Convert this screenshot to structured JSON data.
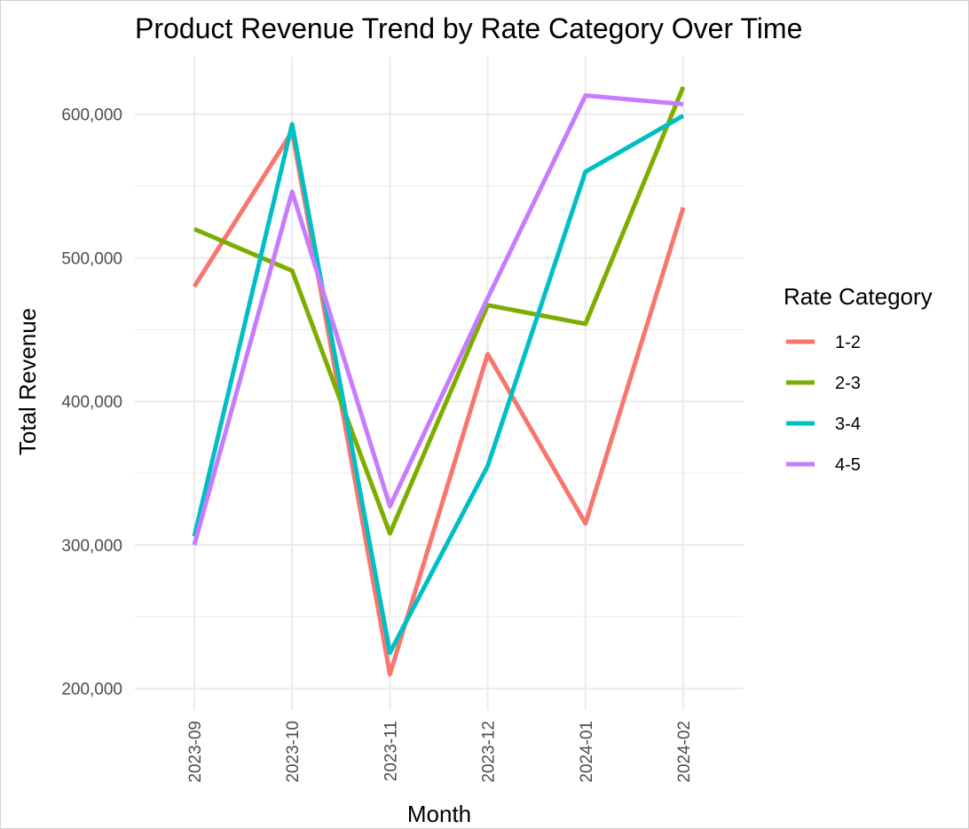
{
  "chart_data": {
    "type": "line",
    "title": "Product Revenue Trend by Rate Category Over Time",
    "xlabel": "Month",
    "ylabel": "Total Revenue",
    "categories": [
      "2023-09",
      "2023-10",
      "2023-11",
      "2023-12",
      "2024-01",
      "2024-02"
    ],
    "ylim": [
      185000,
      640000
    ],
    "yticks": [
      200000,
      300000,
      400000,
      500000,
      600000
    ],
    "ytick_labels": [
      "200,000",
      "300,000",
      "400,000",
      "500,000",
      "600,000"
    ],
    "grid": true,
    "legend": {
      "title": "Rate Category",
      "placement": "right"
    },
    "series": [
      {
        "name": "1-2",
        "color": "#F8766D",
        "values": [
          480000,
          588000,
          210000,
          433000,
          315000,
          535000
        ]
      },
      {
        "name": "2-3",
        "color": "#7CAE00",
        "values": [
          520000,
          491000,
          308000,
          467000,
          454000,
          619000
        ]
      },
      {
        "name": "3-4",
        "color": "#00BFC4",
        "values": [
          306000,
          593000,
          225000,
          355000,
          560000,
          599000
        ]
      },
      {
        "name": "4-5",
        "color": "#C77CFF",
        "values": [
          300000,
          546000,
          327000,
          472000,
          613000,
          607000
        ]
      }
    ]
  }
}
